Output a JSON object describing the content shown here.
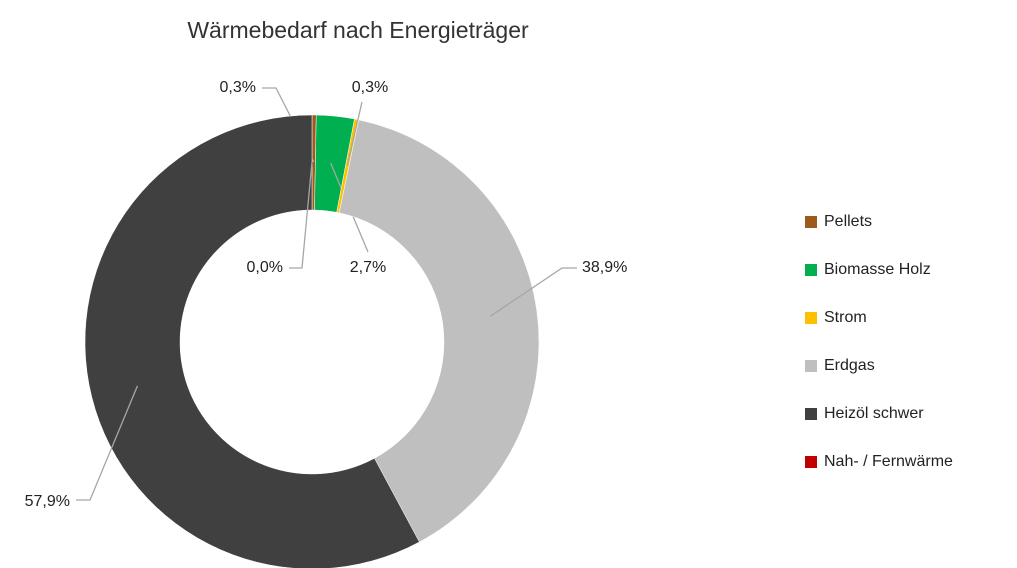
{
  "chart_data": {
    "type": "donut",
    "title": "Wärmebedarf nach Energieträger",
    "categories": [
      "Pellets",
      "Biomasse Holz",
      "Strom",
      "Erdgas",
      "Heizöl schwer",
      "Nah- / Fernwärme"
    ],
    "values": [
      0.3,
      2.7,
      0.3,
      38.9,
      57.9,
      0.0
    ],
    "value_labels": [
      "0,3%",
      "2,7%",
      "0,3%",
      "38,9%",
      "57,9%",
      "0,0%"
    ],
    "colors": [
      "#9c5a1d",
      "#00b050",
      "#ffc000",
      "#bfbfbf",
      "#404040",
      "#c00000"
    ],
    "legend": "right"
  }
}
